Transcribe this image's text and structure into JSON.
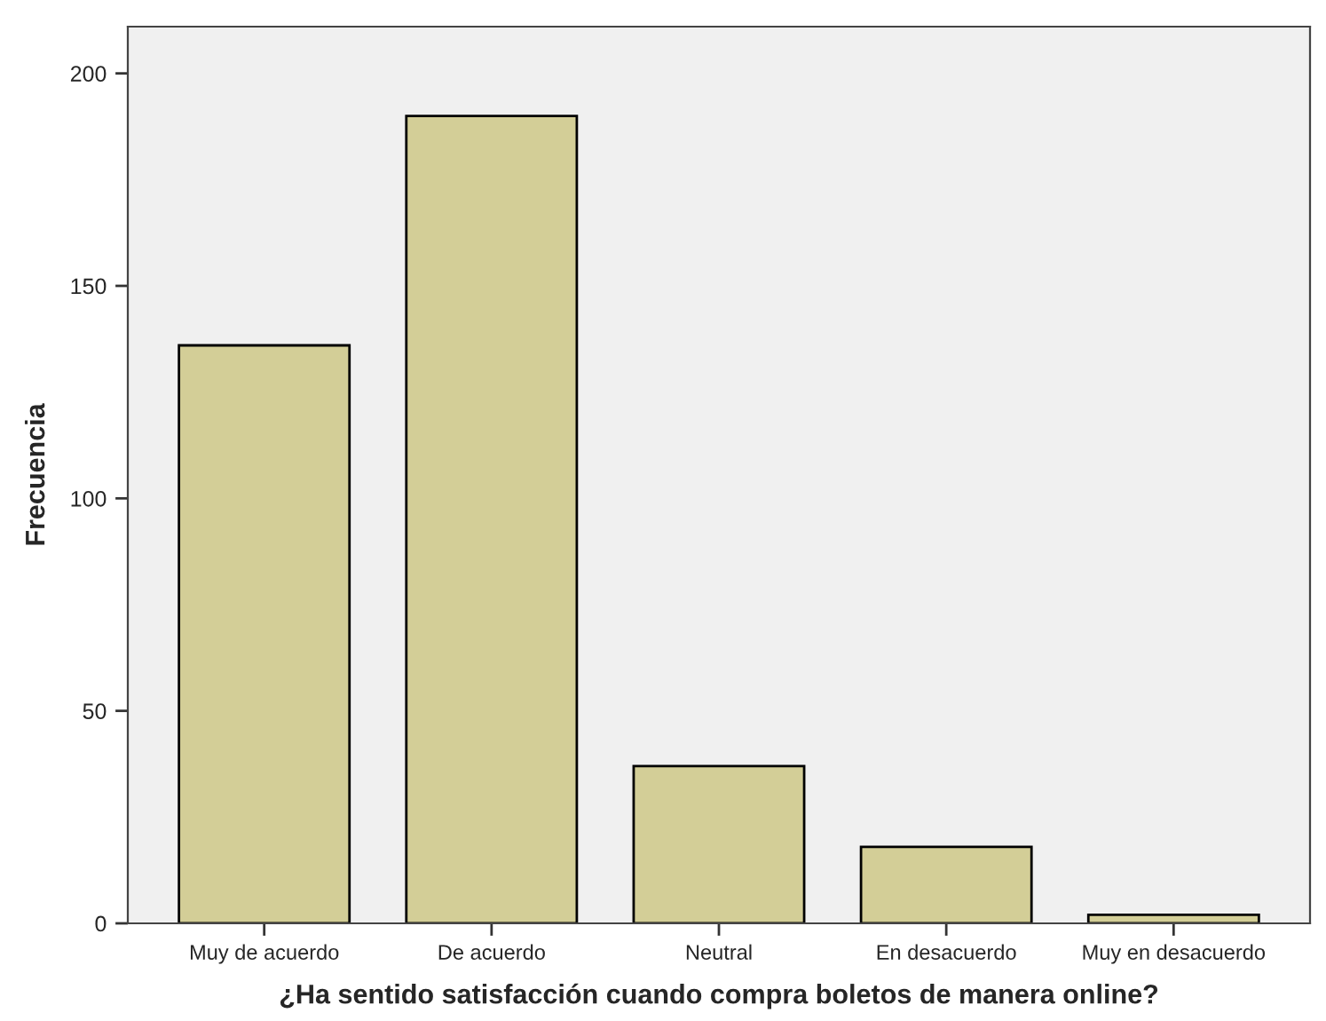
{
  "chart_data": {
    "type": "bar",
    "xlabel": "¿Ha sentido satisfacción cuando compra boletos de manera online?",
    "ylabel": "Frecuencia",
    "categories": [
      "Muy de acuerdo",
      "De acuerdo",
      "Neutral",
      "En desacuerdo",
      "Muy en desacuerdo"
    ],
    "values": [
      136,
      190,
      37,
      18,
      2
    ],
    "color": "#d3ce97",
    "ylim": [
      0,
      211
    ],
    "yticks": [
      0,
      50,
      100,
      150,
      200
    ],
    "grid": false
  }
}
